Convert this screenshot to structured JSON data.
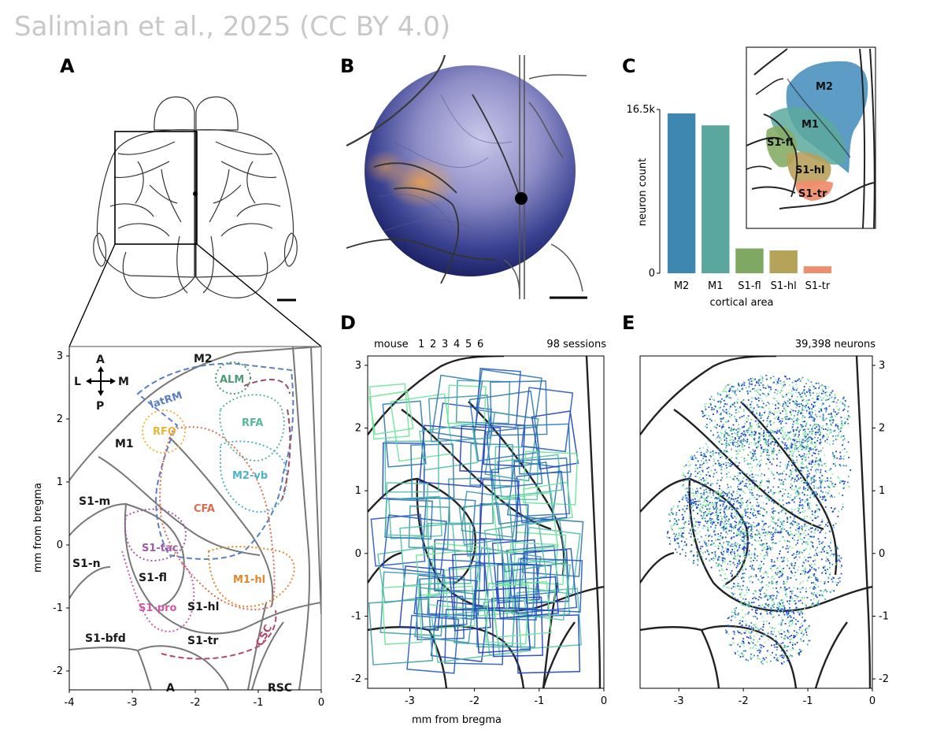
{
  "credit": "Salimian et al., 2025 (CC BY 4.0)",
  "panels": {
    "A": {
      "label": "A",
      "orientation": {
        "a": "A",
        "p": "P",
        "l": "L",
        "m": "M"
      },
      "ylabel": "mm from bregma",
      "x_ticks": [
        "-4",
        "-3",
        "-2",
        "-1",
        "0"
      ],
      "y_ticks": [
        "3",
        "2",
        "1",
        "0",
        "-1",
        "-2"
      ],
      "areas": [
        "M2",
        "M1",
        "S1-m",
        "S1-n",
        "S1-fl",
        "S1-hl",
        "S1-bfd",
        "S1-tr",
        "A",
        "RSC"
      ],
      "subregions": [
        {
          "name": "latRM",
          "color": "#5b7fc0"
        },
        {
          "name": "ALM",
          "color": "#4e9b76"
        },
        {
          "name": "RFA",
          "color": "#59b89a"
        },
        {
          "name": "RFO",
          "color": "#e9b63e"
        },
        {
          "name": "M2-vb",
          "color": "#4fb3c8"
        },
        {
          "name": "CFA",
          "color": "#d96d4e"
        },
        {
          "name": "S1-tac",
          "color": "#a05aa8"
        },
        {
          "name": "S1-pro",
          "color": "#d556a6"
        },
        {
          "name": "M1-hl",
          "color": "#e3872b"
        },
        {
          "name": "CSC",
          "color": "#b04a6e"
        }
      ]
    },
    "B": {
      "label": "B"
    },
    "C": {
      "label": "C",
      "inset_labels": [
        "M2",
        "M1",
        "S1-fl",
        "S1-hl",
        "S1-tr"
      ]
    },
    "D": {
      "label": "D",
      "legend_title": "mouse",
      "mice": [
        {
          "id": "1",
          "color": "#1f3fbf"
        },
        {
          "id": "2",
          "color": "#2559c4"
        },
        {
          "id": "3",
          "color": "#2f78b0"
        },
        {
          "id": "4",
          "color": "#3f9aa8"
        },
        {
          "id": "5",
          "color": "#52c0a8"
        },
        {
          "id": "6",
          "color": "#6fe39a"
        }
      ],
      "sessions_text": "98 sessions",
      "xlabel": "mm from bregma",
      "x_ticks": [
        "-3",
        "-2",
        "-1",
        "0"
      ],
      "y_ticks": [
        "3",
        "2",
        "1",
        "0",
        "-1",
        "-2"
      ]
    },
    "E": {
      "label": "E",
      "neurons_text": "39,398 neurons",
      "x_ticks": [
        "-3",
        "-2",
        "-1",
        "0"
      ],
      "y_ticks": [
        "3",
        "2",
        "1",
        "0",
        "-1",
        "-2"
      ]
    }
  },
  "chart_data": {
    "type": "bar",
    "categories": [
      "M2",
      "M1",
      "S1-fl",
      "S1-hl",
      "S1-tr"
    ],
    "values": [
      16100,
      14900,
      2500,
      2300,
      700
    ],
    "colors": [
      "#3d87b0",
      "#5aa79f",
      "#7fa863",
      "#b5a35a",
      "#ec8f70"
    ],
    "xlabel": "cortical area",
    "ylabel": "neuron count",
    "ylim": [
      0,
      16500
    ],
    "y_tick_labels": [
      "0",
      "16.5k"
    ],
    "grid": false
  }
}
